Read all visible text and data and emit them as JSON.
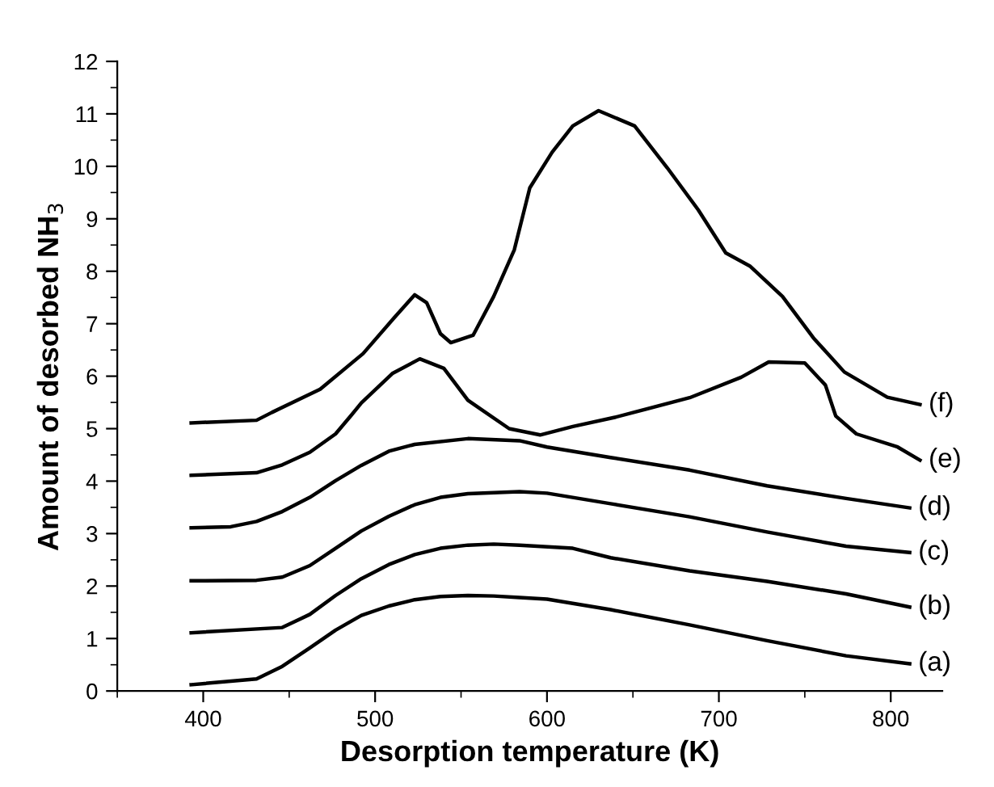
{
  "chart_data": {
    "type": "line",
    "xlabel": "Desorption temperature (K)",
    "ylabel": "Amount of desorbed NH$_{3}$",
    "xlim": [
      350,
      830
    ],
    "ylim": [
      0,
      12
    ],
    "xticks": [
      400,
      500,
      600,
      700,
      800
    ],
    "yticks": [
      0,
      1,
      2,
      3,
      4,
      5,
      6,
      7,
      8,
      9,
      10,
      11,
      12
    ],
    "grid": false,
    "legend": false,
    "marker": "none",
    "line_style": "solid",
    "series": [
      {
        "name": "(a)",
        "color": "#000000",
        "x": [
          393,
          431,
          446,
          462,
          477,
          492,
          508,
          523,
          538,
          554,
          569,
          584,
          600,
          637,
          683,
          728,
          774,
          811
        ],
        "values": [
          0.12,
          0.23,
          0.47,
          0.82,
          1.16,
          1.44,
          1.62,
          1.74,
          1.8,
          1.82,
          1.81,
          1.78,
          1.75,
          1.55,
          1.26,
          0.96,
          0.67,
          0.52
        ]
      },
      {
        "name": "(b)",
        "color": "#000000",
        "x": [
          393,
          446,
          462,
          477,
          492,
          508,
          523,
          538,
          554,
          569,
          584,
          615,
          637,
          683,
          728,
          774,
          811
        ],
        "values": [
          1.11,
          1.21,
          1.46,
          1.82,
          2.14,
          2.41,
          2.6,
          2.72,
          2.78,
          2.8,
          2.78,
          2.72,
          2.54,
          2.29,
          2.09,
          1.85,
          1.6
        ]
      },
      {
        "name": "(c)",
        "color": "#000000",
        "x": [
          393,
          431,
          446,
          462,
          477,
          492,
          508,
          523,
          538,
          554,
          584,
          600,
          637,
          683,
          728,
          774,
          811
        ],
        "values": [
          2.1,
          2.11,
          2.17,
          2.39,
          2.72,
          3.05,
          3.33,
          3.55,
          3.69,
          3.76,
          3.8,
          3.77,
          3.57,
          3.32,
          3.03,
          2.76,
          2.64
        ]
      },
      {
        "name": "(d)",
        "color": "#000000",
        "x": [
          393,
          416,
          431,
          446,
          462,
          477,
          492,
          508,
          523,
          554,
          584,
          600,
          637,
          683,
          728,
          774,
          811
        ],
        "values": [
          3.11,
          3.13,
          3.23,
          3.42,
          3.69,
          4.01,
          4.3,
          4.57,
          4.7,
          4.81,
          4.77,
          4.65,
          4.45,
          4.21,
          3.91,
          3.67,
          3.49
        ]
      },
      {
        "name": "(e)",
        "color": "#000000",
        "x": [
          393,
          431,
          446,
          462,
          477,
          486,
          492,
          510,
          526,
          540,
          554,
          578,
          596,
          615,
          640,
          683,
          713,
          729,
          750,
          762,
          768,
          780,
          804,
          817
        ],
        "values": [
          4.11,
          4.16,
          4.31,
          4.55,
          4.9,
          5.25,
          5.49,
          6.05,
          6.33,
          6.15,
          5.54,
          5.0,
          4.88,
          5.04,
          5.22,
          5.59,
          5.98,
          6.27,
          6.25,
          5.83,
          5.24,
          4.9,
          4.65,
          4.4
        ]
      },
      {
        "name": "(f)",
        "color": "#000000",
        "x": [
          393,
          431,
          440,
          468,
          493,
          511,
          523,
          530,
          538,
          544,
          557,
          569,
          581,
          590,
          603,
          615,
          630,
          651,
          670,
          688,
          704,
          718,
          737,
          755,
          773,
          798,
          817
        ],
        "values": [
          5.11,
          5.16,
          5.31,
          5.75,
          6.43,
          7.11,
          7.55,
          7.4,
          6.81,
          6.64,
          6.78,
          7.52,
          8.41,
          9.59,
          10.27,
          10.77,
          11.06,
          10.77,
          9.97,
          9.17,
          8.35,
          8.1,
          7.52,
          6.73,
          6.08,
          5.6,
          5.46
        ]
      }
    ]
  }
}
